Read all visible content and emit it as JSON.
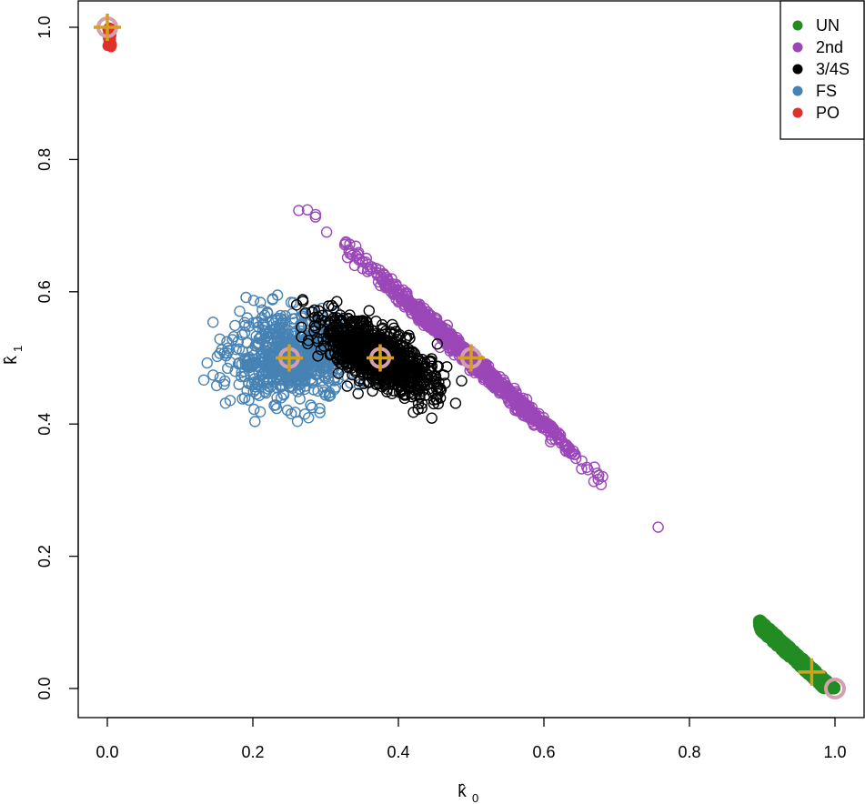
{
  "chart_data": {
    "type": "scatter",
    "xlabel": "k̂",
    "xlabel_sub": "0",
    "ylabel": "k̂",
    "ylabel_sub": "1",
    "xlim": [
      0.0,
      1.0
    ],
    "ylim": [
      0.0,
      1.0
    ],
    "x_ticks": [
      "0.0",
      "0.2",
      "0.4",
      "0.6",
      "0.8",
      "1.0"
    ],
    "y_ticks": [
      "0.0",
      "0.2",
      "0.4",
      "0.6",
      "0.8",
      "1.0"
    ],
    "grid": false,
    "legend_position": "top-right",
    "legend": [
      {
        "name": "UN",
        "color": "#228b22"
      },
      {
        "name": "2nd",
        "color": "#9b47b8"
      },
      {
        "name": "3/4S",
        "color": "#000000"
      },
      {
        "name": "FS",
        "color": "#4682b4"
      },
      {
        "name": "PO",
        "color": "#e0302a"
      }
    ],
    "series": [
      {
        "name": "UN",
        "color": "#228b22",
        "marker": "circle-filled",
        "distribution": "band along k1 = 1 - k0",
        "k0_range": [
          0.895,
          1.0
        ],
        "k1_range": [
          0.0,
          0.105
        ]
      },
      {
        "name": "2nd",
        "color": "#9b47b8",
        "marker": "circle-open",
        "distribution": "band along k1 = 1 - k0",
        "k0_range": [
          0.26,
          0.76
        ],
        "k1_range": [
          0.24,
          0.73
        ]
      },
      {
        "name": "3/4S",
        "color": "#000000",
        "marker": "circle-open",
        "distribution": "cloud",
        "center": [
          0.375,
          0.5
        ],
        "k0_range": [
          0.26,
          0.51
        ],
        "k1_range": [
          0.39,
          0.62
        ]
      },
      {
        "name": "FS",
        "color": "#4682b4",
        "marker": "circle-open",
        "distribution": "cloud",
        "center": [
          0.25,
          0.5
        ],
        "k0_range": [
          0.13,
          0.37
        ],
        "k1_range": [
          0.38,
          0.61
        ]
      },
      {
        "name": "PO",
        "color": "#e0302a",
        "marker": "circle-filled",
        "distribution": "cluster",
        "center": [
          0.003,
          0.985
        ],
        "k0_range": [
          0.0,
          0.008
        ],
        "k1_range": [
          0.97,
          1.0
        ]
      }
    ],
    "expected_markers": [
      {
        "x": 0.0,
        "y": 1.0
      },
      {
        "x": 0.25,
        "y": 0.5
      },
      {
        "x": 0.375,
        "y": 0.5
      },
      {
        "x": 0.5,
        "y": 0.5
      },
      {
        "x": 1.0,
        "y": 0.0
      }
    ],
    "cross_markers": [
      {
        "x": 0.0,
        "y": 1.0
      },
      {
        "x": 0.25,
        "y": 0.5
      },
      {
        "x": 0.375,
        "y": 0.5
      },
      {
        "x": 0.5,
        "y": 0.5
      },
      {
        "x": 0.968,
        "y": 0.025
      }
    ],
    "expected_marker_color": "#d4a0ae",
    "cross_marker_color": "#d4a020"
  }
}
